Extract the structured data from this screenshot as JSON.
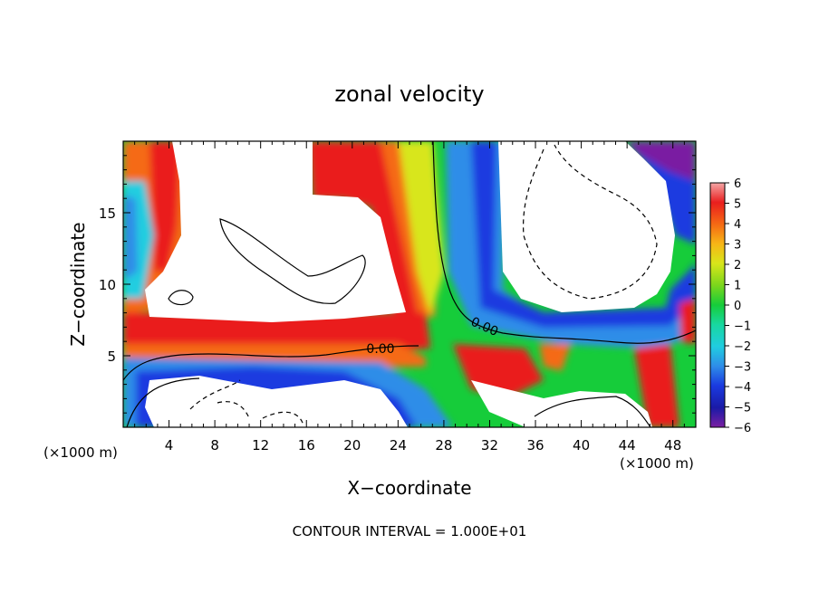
{
  "chart_data": {
    "type": "heatmap",
    "title": "zonal velocity",
    "xlabel": "X−coordinate",
    "ylabel": "Z−coordinate",
    "x_multiplier_label_left": "(×1000 m)",
    "x_multiplier_label_right": "(×1000 m)",
    "footer": "CONTOUR INTERVAL = 1.000E+01",
    "xlim": [
      0,
      50
    ],
    "ylim": [
      0,
      20
    ],
    "x_ticks": [
      4,
      8,
      12,
      16,
      20,
      24,
      28,
      32,
      36,
      40,
      44,
      48
    ],
    "y_ticks": [
      5,
      10,
      15
    ],
    "colorbar": {
      "min": -6,
      "max": 6,
      "ticks": [
        6,
        5,
        4,
        3,
        2,
        1,
        0,
        -1,
        -2,
        -3,
        -4,
        -5,
        -6
      ],
      "tick_labels": [
        "6",
        "5",
        "4",
        "3",
        "2",
        "1",
        "0",
        "−1",
        "−2",
        "−3",
        "−4",
        "−5",
        "−6"
      ],
      "colors": [
        "#7a1fa2",
        "#1a1aa6",
        "#1a3ae0",
        "#2e8de8",
        "#20cde0",
        "#18d8a0",
        "#16cc3a",
        "#7ad61c",
        "#d8e61a",
        "#f7b616",
        "#f56a14",
        "#ea1e1e",
        "#f07a7a",
        "#f4a6a6"
      ]
    },
    "contour_labels": [
      {
        "text": "0.00",
        "x": 31,
        "y": 7
      },
      {
        "text": "0.00",
        "x": 24,
        "y": 5.6
      }
    ]
  }
}
